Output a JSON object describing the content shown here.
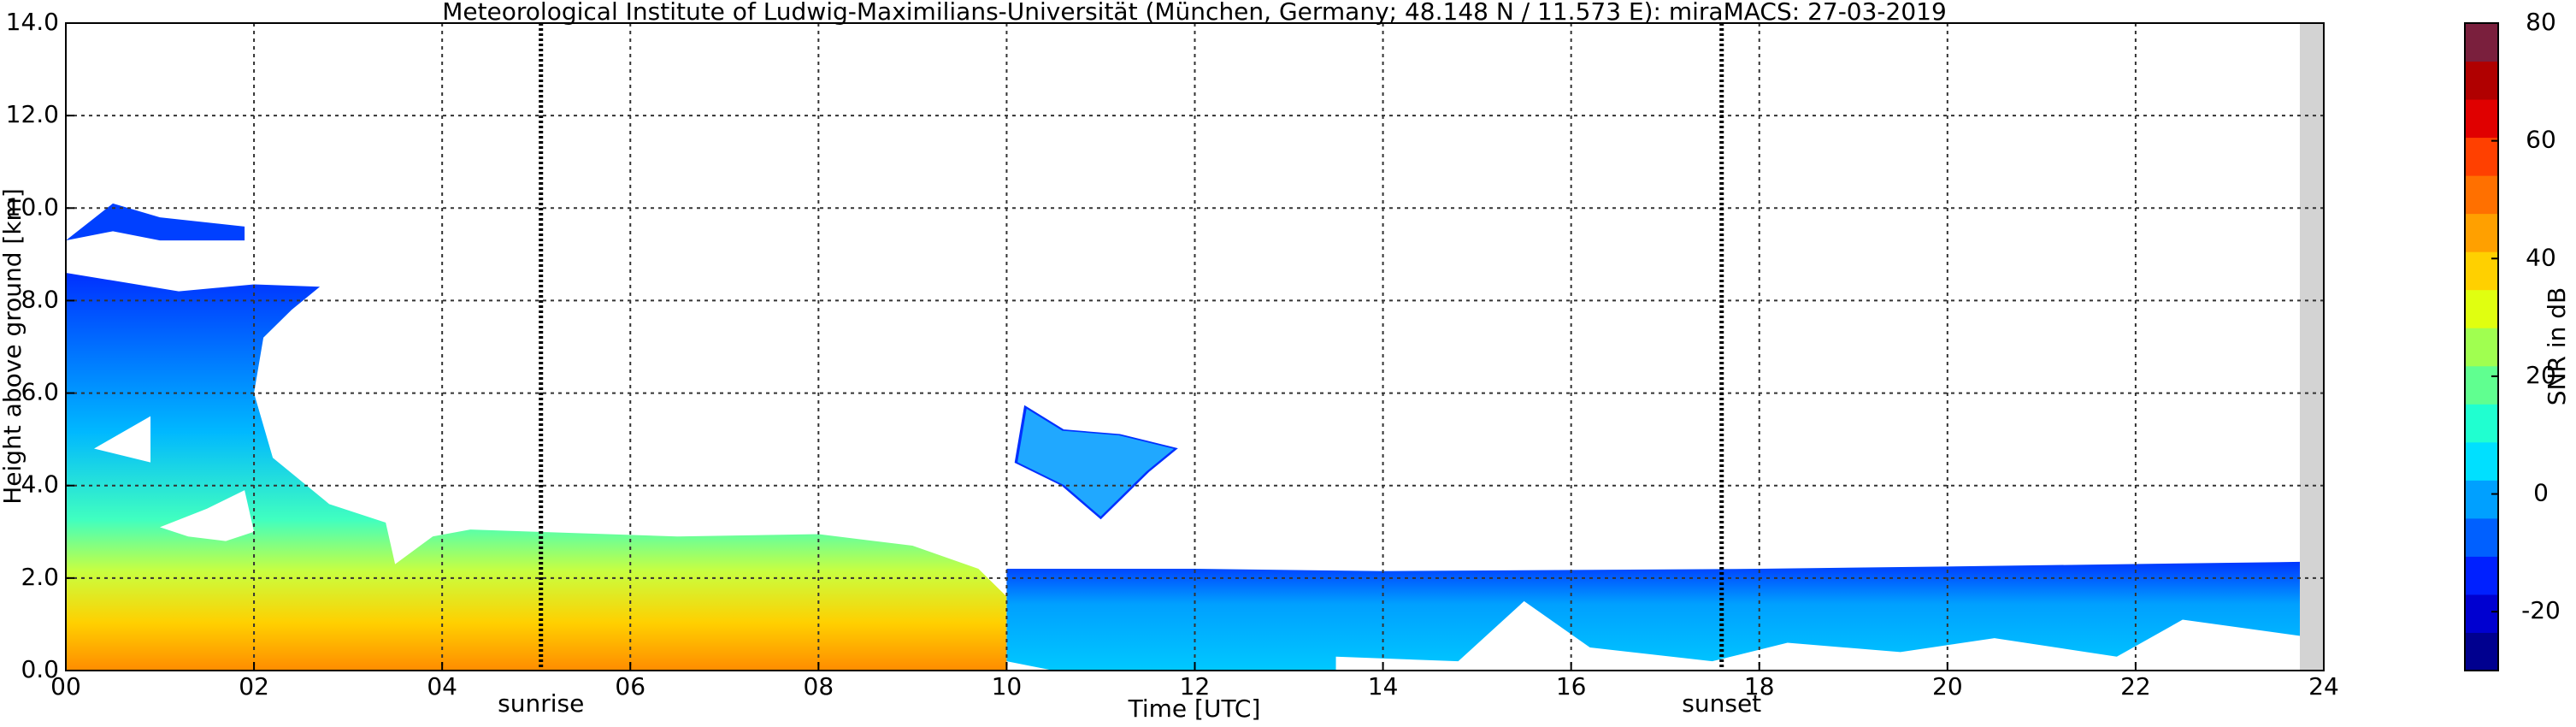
{
  "chart_data": {
    "type": "heatmap",
    "title": "Meteorological Institute of Ludwig-Maximilians-Universität (München, Germany; 48.148 N / 11.573 E):    miraMACS: 27-03-2019",
    "x_label": "Time [UTC]",
    "y_label": "Height above ground [km]",
    "xlim": [
      0,
      24
    ],
    "xticks": [
      {
        "value": 0,
        "label": "00"
      },
      {
        "value": 2,
        "label": "02"
      },
      {
        "value": 4,
        "label": "04"
      },
      {
        "value": 6,
        "label": "06"
      },
      {
        "value": 8,
        "label": "08"
      },
      10,
      12,
      14,
      16,
      18,
      20,
      22,
      24
    ],
    "ylim": [
      0,
      14
    ],
    "yticks": [
      {
        "value": 0,
        "label": "0.0"
      },
      {
        "value": 2,
        "label": "2.0"
      },
      {
        "value": 4,
        "label": "4.0"
      },
      {
        "value": 6,
        "label": "6.0"
      },
      {
        "value": 8,
        "label": "8.0"
      },
      {
        "value": 10,
        "label": "10.0"
      },
      {
        "value": 12,
        "label": "12.0"
      },
      {
        "value": 14,
        "label": "14.0"
      }
    ],
    "grid": true,
    "annotations": [
      {
        "label": "sunrise",
        "x": 5.05
      },
      {
        "label": "sunset",
        "x": 17.6
      }
    ],
    "colorbar": {
      "label": "SNR in dB",
      "lim": [
        -30,
        80
      ],
      "ticks": [
        -20,
        0,
        20,
        40,
        60,
        80
      ],
      "colors": [
        "#00008f",
        "#0000d0",
        "#0020ff",
        "#0060ff",
        "#00a0ff",
        "#00e0ff",
        "#20ffd0",
        "#60ff90",
        "#a0ff50",
        "#e0ff10",
        "#ffd000",
        "#ffa000",
        "#ff7000",
        "#ff4000",
        "#e00000",
        "#b00000",
        "#7a1f3d"
      ]
    }
  }
}
